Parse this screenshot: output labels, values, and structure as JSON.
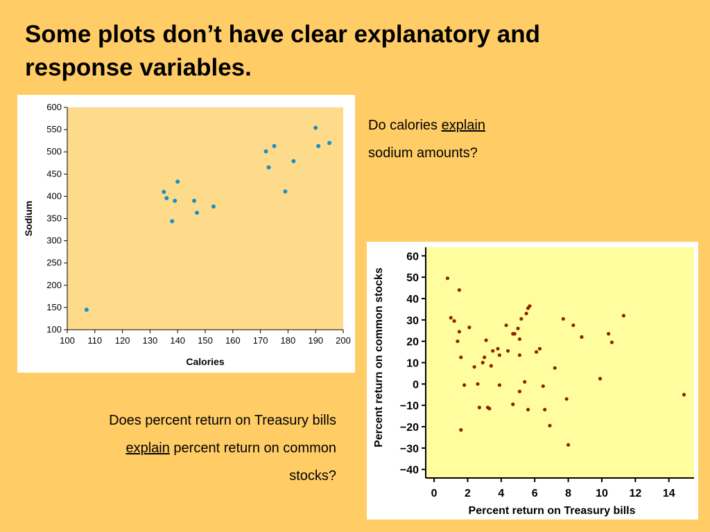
{
  "slide": {
    "title_line1": "Some plots don’t have clear explanatory and",
    "title_line2": "response variables."
  },
  "question1": {
    "prefix": "Do calories ",
    "emphasis": "explain",
    "line2": "sodium amounts?"
  },
  "question2": {
    "line1": "Does percent return on Treasury bills",
    "emphasis": "explain",
    "line2_rest": " percent return on common",
    "line3": "stocks?"
  },
  "colors": {
    "background": "#ffcc66",
    "plot1_bg": "#fedb8b",
    "plot1_point": "#1a8fc4",
    "plot2_bg": "#fffd9e",
    "plot2_point": "#8b2500"
  },
  "chart_data": [
    {
      "type": "scatter",
      "xlabel": "Calories",
      "ylabel": "Sodium",
      "xlim": [
        100,
        200
      ],
      "ylim": [
        100,
        600
      ],
      "xticks": [
        100,
        110,
        120,
        130,
        140,
        150,
        160,
        170,
        180,
        190,
        200
      ],
      "yticks": [
        100,
        150,
        200,
        250,
        300,
        350,
        400,
        450,
        500,
        550,
        600
      ],
      "grid": false,
      "points": [
        {
          "x": 107,
          "y": 145
        },
        {
          "x": 135,
          "y": 410
        },
        {
          "x": 136,
          "y": 396
        },
        {
          "x": 138,
          "y": 344
        },
        {
          "x": 139,
          "y": 390
        },
        {
          "x": 140,
          "y": 433
        },
        {
          "x": 146,
          "y": 390
        },
        {
          "x": 147,
          "y": 363
        },
        {
          "x": 153,
          "y": 377
        },
        {
          "x": 172,
          "y": 501
        },
        {
          "x": 173,
          "y": 465
        },
        {
          "x": 175,
          "y": 513
        },
        {
          "x": 179,
          "y": 411
        },
        {
          "x": 182,
          "y": 479
        },
        {
          "x": 190,
          "y": 554
        },
        {
          "x": 191,
          "y": 513
        },
        {
          "x": 195,
          "y": 520
        }
      ]
    },
    {
      "type": "scatter",
      "xlabel": "Percent return on Treasury bills",
      "ylabel": "Percent return on common stocks",
      "xlim": [
        -0.5,
        15.5
      ],
      "ylim": [
        -44,
        64
      ],
      "xticks": [
        0,
        2,
        4,
        6,
        8,
        10,
        12,
        14
      ],
      "yticks": [
        60,
        50,
        40,
        30,
        20,
        10,
        0,
        -10,
        -20,
        -30,
        -40
      ],
      "grid": false,
      "points": [
        {
          "x": 0.8,
          "y": 49.5
        },
        {
          "x": 1.0,
          "y": 31
        },
        {
          "x": 1.2,
          "y": 29.5
        },
        {
          "x": 1.5,
          "y": 44
        },
        {
          "x": 1.5,
          "y": 24.5
        },
        {
          "x": 1.4,
          "y": 20
        },
        {
          "x": 1.6,
          "y": 12.5
        },
        {
          "x": 1.6,
          "y": -21.5
        },
        {
          "x": 1.8,
          "y": -0.5
        },
        {
          "x": 2.1,
          "y": 26.5
        },
        {
          "x": 2.4,
          "y": 8
        },
        {
          "x": 2.6,
          "y": 0
        },
        {
          "x": 2.7,
          "y": -11
        },
        {
          "x": 2.9,
          "y": 10
        },
        {
          "x": 3.0,
          "y": 12.5
        },
        {
          "x": 3.1,
          "y": 20.5
        },
        {
          "x": 3.2,
          "y": -11
        },
        {
          "x": 3.3,
          "y": -11.5
        },
        {
          "x": 3.4,
          "y": 8.5
        },
        {
          "x": 3.5,
          "y": 15.5
        },
        {
          "x": 3.8,
          "y": 16.5
        },
        {
          "x": 3.9,
          "y": 13.5
        },
        {
          "x": 3.9,
          "y": -0.5
        },
        {
          "x": 4.3,
          "y": 27.5
        },
        {
          "x": 4.4,
          "y": 15.5
        },
        {
          "x": 4.7,
          "y": 23.5
        },
        {
          "x": 4.8,
          "y": 23.5
        },
        {
          "x": 4.7,
          "y": -9.5
        },
        {
          "x": 5.0,
          "y": 26
        },
        {
          "x": 5.1,
          "y": 21
        },
        {
          "x": 5.1,
          "y": 13.5
        },
        {
          "x": 5.1,
          "y": -3.5
        },
        {
          "x": 5.2,
          "y": 30.5
        },
        {
          "x": 5.4,
          "y": 1
        },
        {
          "x": 5.5,
          "y": 33
        },
        {
          "x": 5.6,
          "y": 35.5
        },
        {
          "x": 5.7,
          "y": 36.5
        },
        {
          "x": 5.6,
          "y": -12
        },
        {
          "x": 6.1,
          "y": 15
        },
        {
          "x": 6.3,
          "y": 16.5
        },
        {
          "x": 6.5,
          "y": -1
        },
        {
          "x": 6.6,
          "y": -12
        },
        {
          "x": 6.9,
          "y": -19.5
        },
        {
          "x": 7.2,
          "y": 7.5
        },
        {
          "x": 7.7,
          "y": 30.5
        },
        {
          "x": 7.9,
          "y": -7
        },
        {
          "x": 8.0,
          "y": -28.5
        },
        {
          "x": 8.3,
          "y": 27.5
        },
        {
          "x": 8.8,
          "y": 22
        },
        {
          "x": 9.9,
          "y": 2.5
        },
        {
          "x": 10.4,
          "y": 23.5
        },
        {
          "x": 10.6,
          "y": 19.5
        },
        {
          "x": 11.3,
          "y": 32
        },
        {
          "x": 14.9,
          "y": -5
        }
      ]
    }
  ]
}
